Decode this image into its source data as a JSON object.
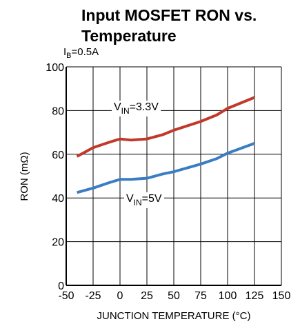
{
  "chart_data": {
    "type": "line",
    "title": [
      "Input MOSFET RON vs.",
      "Temperature"
    ],
    "subtitle": [
      "I",
      "B",
      "=0.5A"
    ],
    "x_label": "JUNCTION TEMPERATURE (°C)",
    "y_label": "RON (mΩ)",
    "xlim": [
      -50,
      150
    ],
    "xticks": [
      -50,
      -25,
      0,
      25,
      50,
      75,
      100,
      125,
      150
    ],
    "ylim": [
      0,
      100
    ],
    "yticks": [
      0,
      20,
      40,
      60,
      80,
      100
    ],
    "grid": true,
    "series": [
      {
        "label": [
          "V",
          "IN",
          "=3.3V"
        ],
        "color": "#c0392b",
        "x": [
          -40,
          -25,
          -10,
          0,
          10,
          25,
          40,
          50,
          75,
          90,
          100,
          125
        ],
        "values": [
          59,
          63,
          65.5,
          67,
          66.5,
          67,
          69,
          71,
          75,
          78,
          81,
          86
        ]
      },
      {
        "label": [
          "V",
          "IN",
          "=5V"
        ],
        "color": "#3a7dc2",
        "x": [
          -40,
          -25,
          -10,
          0,
          10,
          25,
          40,
          50,
          75,
          90,
          100,
          125
        ],
        "values": [
          42.5,
          44.5,
          47,
          48.5,
          48.5,
          49,
          51,
          52,
          55.5,
          58,
          60.5,
          65
        ]
      }
    ]
  }
}
